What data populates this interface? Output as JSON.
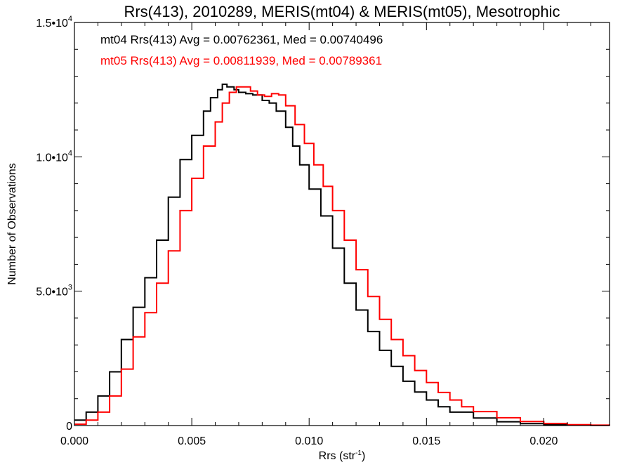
{
  "chart_data": {
    "type": "line",
    "title": "Rrs(413), 2010289, MERIS(mt04) & MERIS(mt05), Mesotrophic",
    "xlabel": "Rrs (str",
    "xlabel_sup": "-1",
    "xlabel_close": ")",
    "ylabel": "Number of Observations",
    "xlim": [
      0.0,
      0.0228
    ],
    "ylim": [
      0,
      15000
    ],
    "grid": false,
    "x_ticks": [
      {
        "value": 0.0,
        "label": "0.000"
      },
      {
        "value": 0.005,
        "label": "0.005"
      },
      {
        "value": 0.01,
        "label": "0.010"
      },
      {
        "value": 0.015,
        "label": "0.015"
      },
      {
        "value": 0.02,
        "label": "0.020"
      }
    ],
    "y_ticks": [
      {
        "value": 0,
        "mantissa": "0",
        "exp": ""
      },
      {
        "value": 5000,
        "mantissa": "5.0•10",
        "exp": "3"
      },
      {
        "value": 10000,
        "mantissa": "1.0•10",
        "exp": "4"
      },
      {
        "value": 15000,
        "mantissa": "1.5•10",
        "exp": "4"
      }
    ],
    "annotations": [
      {
        "text": "mt04 Rrs(413) Avg = 0.00762361, Med = 0.00740496",
        "color": "#000000"
      },
      {
        "text": "mt05 Rrs(413) Avg = 0.00811939, Med = 0.00789361",
        "color": "#ff0000"
      }
    ],
    "series": [
      {
        "color": "#000000",
        "x": [
          0.0,
          0.0005,
          0.001,
          0.0015,
          0.002,
          0.0025,
          0.003,
          0.0035,
          0.004,
          0.0045,
          0.005,
          0.0055,
          0.0058,
          0.0061,
          0.0063,
          0.0065,
          0.0068,
          0.007,
          0.0073,
          0.0076,
          0.008,
          0.0083,
          0.0086,
          0.009,
          0.0093,
          0.0096,
          0.01,
          0.0105,
          0.011,
          0.0115,
          0.012,
          0.0125,
          0.013,
          0.0135,
          0.014,
          0.0145,
          0.015,
          0.0155,
          0.016,
          0.017,
          0.018,
          0.019,
          0.02,
          0.021,
          0.022,
          0.0228
        ],
        "y": [
          200,
          500,
          1100,
          2000,
          3200,
          4400,
          5500,
          6900,
          8500,
          9900,
          10800,
          11700,
          12200,
          12500,
          12700,
          12600,
          12500,
          12400,
          12350,
          12300,
          12100,
          12000,
          11700,
          11100,
          10400,
          9700,
          8800,
          7800,
          6600,
          5300,
          4300,
          3500,
          2800,
          2200,
          1650,
          1250,
          950,
          700,
          500,
          280,
          140,
          70,
          35,
          15,
          6,
          2
        ]
      },
      {
        "color": "#ff0000",
        "x": [
          0.0,
          0.0005,
          0.001,
          0.0015,
          0.002,
          0.0025,
          0.003,
          0.0035,
          0.004,
          0.0045,
          0.005,
          0.0055,
          0.006,
          0.0063,
          0.0066,
          0.0069,
          0.0072,
          0.0075,
          0.0078,
          0.0081,
          0.0084,
          0.0087,
          0.009,
          0.0094,
          0.0098,
          0.0102,
          0.0106,
          0.011,
          0.0115,
          0.012,
          0.0125,
          0.013,
          0.0135,
          0.014,
          0.0145,
          0.015,
          0.0155,
          0.016,
          0.0165,
          0.017,
          0.018,
          0.019,
          0.02,
          0.021,
          0.022,
          0.0228
        ],
        "y": [
          50,
          200,
          500,
          1100,
          2100,
          3300,
          4200,
          5300,
          6500,
          8000,
          9200,
          10400,
          11300,
          12000,
          12400,
          12600,
          12600,
          12450,
          12300,
          12250,
          12350,
          12300,
          11900,
          11200,
          10500,
          9700,
          8900,
          8000,
          6900,
          5800,
          4800,
          3950,
          3200,
          2600,
          2050,
          1600,
          1230,
          950,
          700,
          520,
          290,
          150,
          75,
          35,
          15,
          5
        ]
      }
    ]
  }
}
